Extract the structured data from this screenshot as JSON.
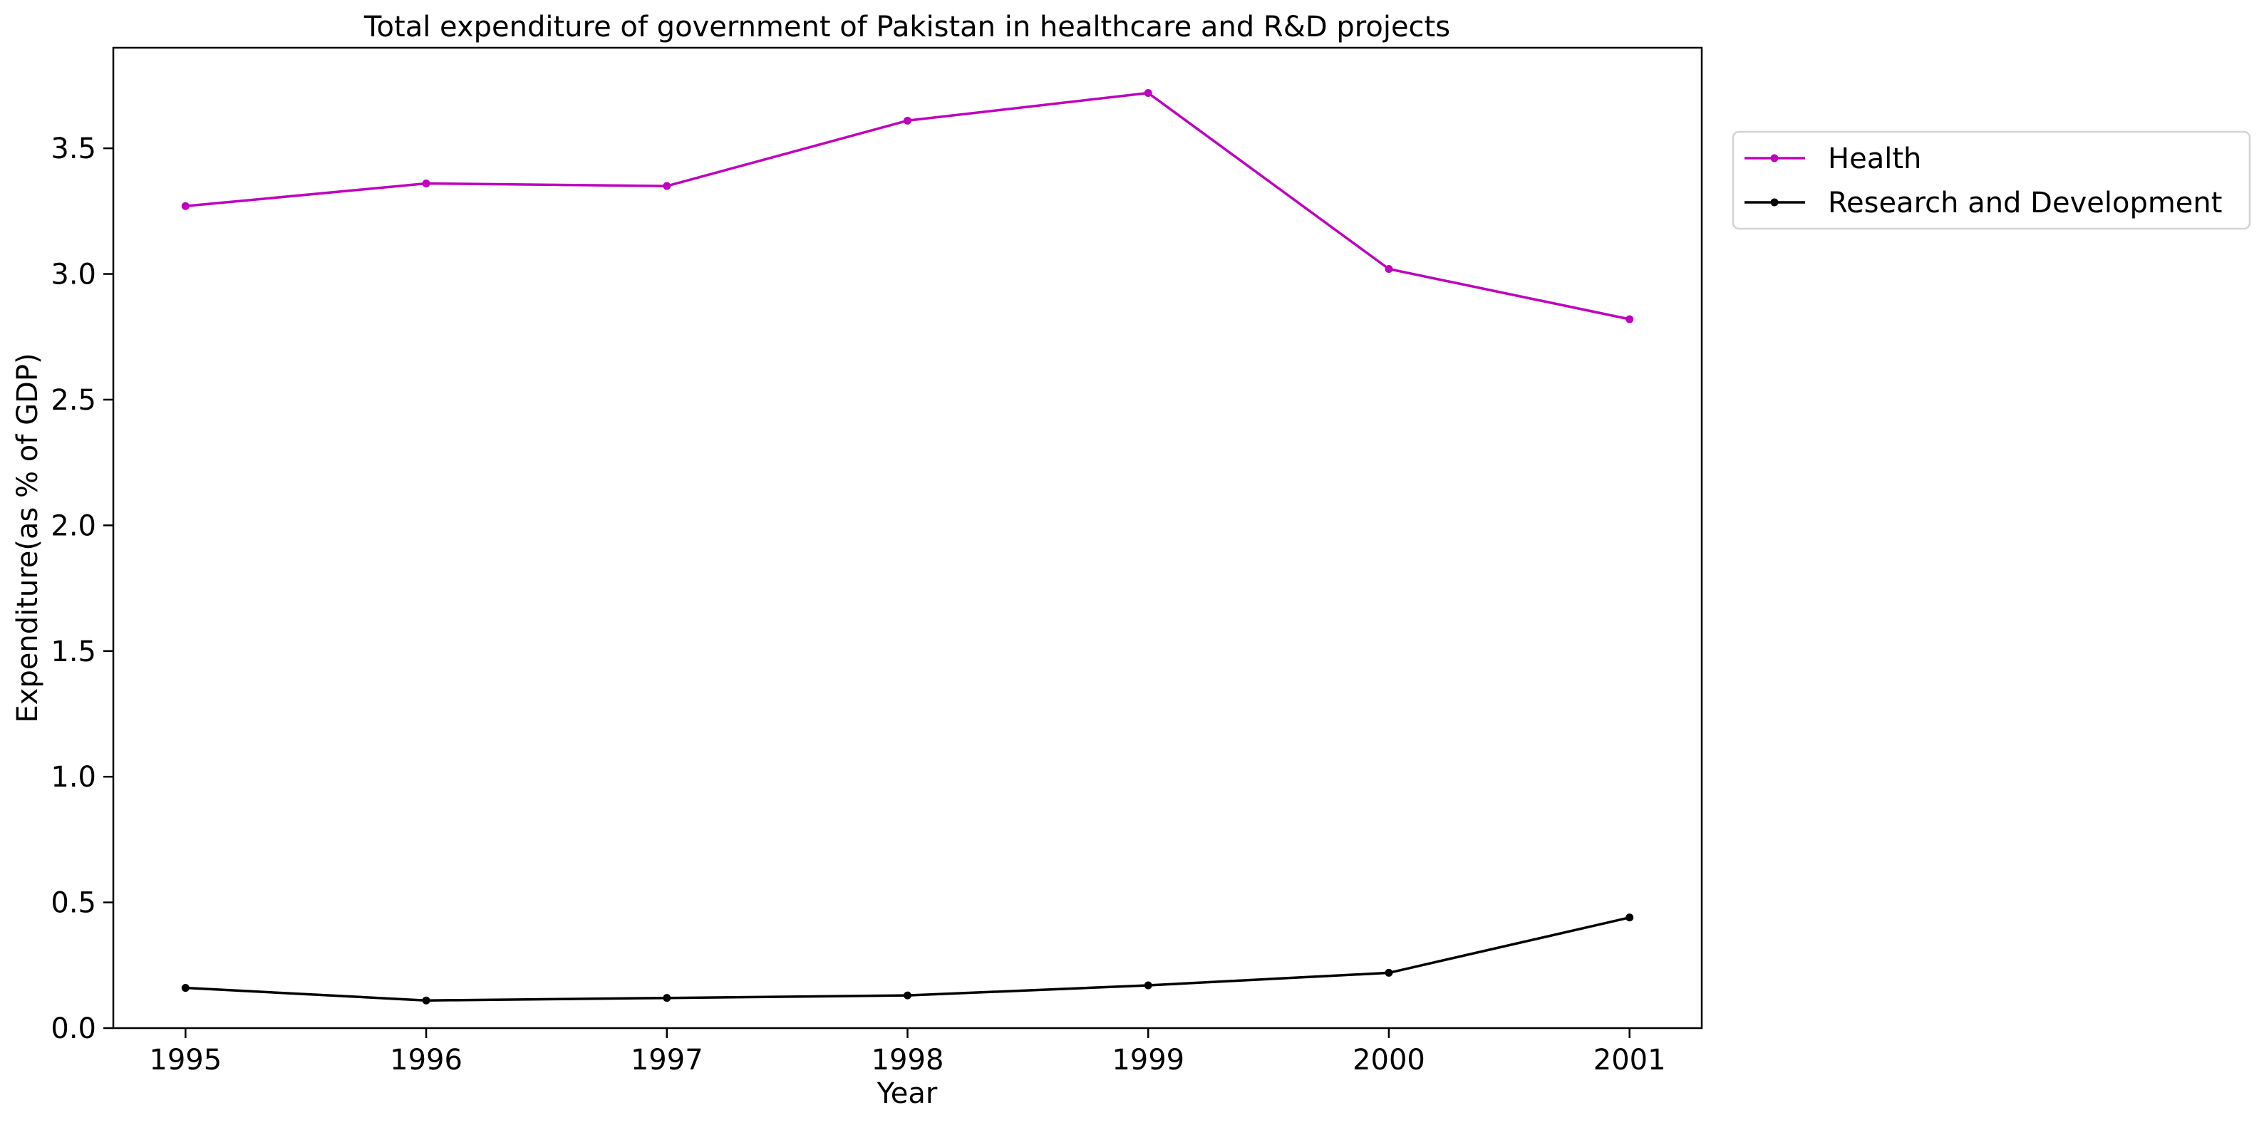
{
  "chart_data": {
    "type": "line",
    "title": "Total expenditure of government of Pakistan in healthcare and R&D projects",
    "xlabel": "Year",
    "ylabel": "Expenditure(as % of GDP)",
    "x": [
      1995,
      1996,
      1997,
      1998,
      1999,
      2000,
      2001
    ],
    "x_tick_labels": [
      "1995",
      "1996",
      "1997",
      "1998",
      "1999",
      "2000",
      "2001"
    ],
    "y_ticks": [
      0.0,
      0.5,
      1.0,
      1.5,
      2.0,
      2.5,
      3.0,
      3.5
    ],
    "y_tick_labels": [
      "0.0",
      "0.5",
      "1.0",
      "1.5",
      "2.0",
      "2.5",
      "3.0",
      "3.5"
    ],
    "xlim": [
      1994.7,
      2001.3
    ],
    "ylim": [
      0.0,
      3.9
    ],
    "grid": false,
    "legend_position": "outside-top-right",
    "series": [
      {
        "name": "Health",
        "color": "#bf00bf",
        "marker": "dot",
        "values": [
          3.27,
          3.36,
          3.35,
          3.61,
          3.72,
          3.02,
          2.82
        ]
      },
      {
        "name": "Research and Development",
        "color": "#000000",
        "marker": "dot",
        "values": [
          0.16,
          0.11,
          0.12,
          0.13,
          0.17,
          0.22,
          0.44
        ]
      }
    ]
  }
}
